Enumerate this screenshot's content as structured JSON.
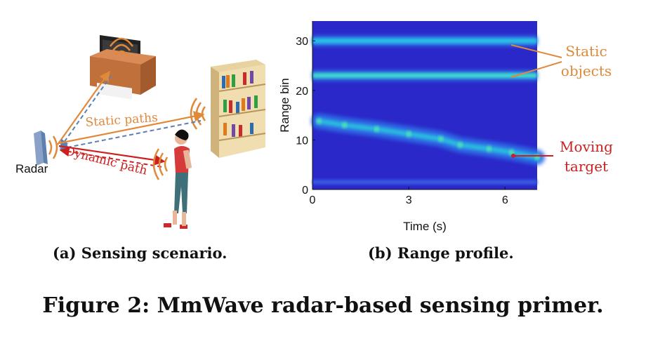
{
  "figure": {
    "caption": "Figure 2: MmWave radar-based sensing primer.",
    "subcaption_a": "(a) Sensing scenario.",
    "subcaption_b": "(b) Range profile."
  },
  "scenario": {
    "radar_label": "Radar",
    "static_paths_label": "Static paths",
    "dynamic_path_label": "Dynamic path",
    "colors": {
      "static": "#e0893a",
      "dynamic": "#cc1f1f",
      "reflect": "#5b7fb5"
    }
  },
  "range_profile": {
    "annotations": {
      "static_line1": "Static",
      "static_line2": "objects",
      "moving_line1": "Moving",
      "moving_line2": "target"
    },
    "annotation_colors": {
      "static": "#e0893a",
      "moving": "#cc1f1f"
    }
  },
  "chart_data": {
    "type": "heatmap",
    "title": "",
    "xlabel": "Time (s)",
    "ylabel": "Range bin",
    "xlim": [
      0,
      7
    ],
    "ylim": [
      0,
      34
    ],
    "xticks": [
      0,
      3,
      6
    ],
    "yticks": [
      0,
      10,
      20,
      30
    ],
    "static_bins": [
      30,
      23
    ],
    "noise_band_bins": [
      1.5
    ],
    "moving_target_track": [
      {
        "t": 0.2,
        "bin": 13.8
      },
      {
        "t": 1.0,
        "bin": 13.0
      },
      {
        "t": 2.0,
        "bin": 12.2
      },
      {
        "t": 3.0,
        "bin": 11.2
      },
      {
        "t": 4.0,
        "bin": 10.2
      },
      {
        "t": 4.6,
        "bin": 9.0
      },
      {
        "t": 5.5,
        "bin": 8.2
      },
      {
        "t": 6.2,
        "bin": 7.5
      },
      {
        "t": 7.0,
        "bin": 6.5
      }
    ]
  }
}
